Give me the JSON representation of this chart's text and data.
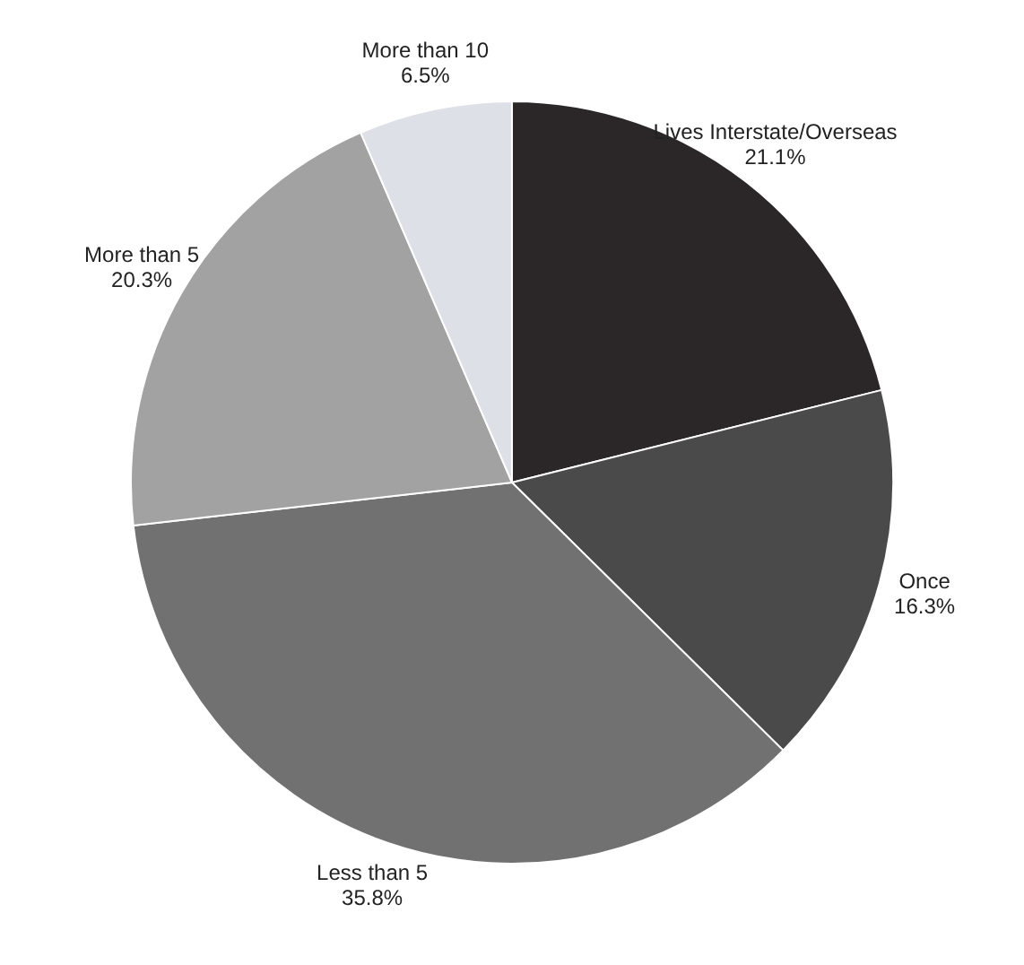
{
  "chart_data": {
    "type": "pie",
    "categories": [
      "Lives Interstate/Overseas",
      "Once",
      "Less than 5",
      "More than 5",
      "More than 10"
    ],
    "values": [
      21.1,
      16.3,
      35.8,
      20.3,
      6.5
    ],
    "value_labels": [
      "21.1%",
      "16.3%",
      "35.8%",
      "20.3%",
      "6.5%"
    ],
    "colors": [
      "#2b2729",
      "#4b4a4b",
      "#717171",
      "#a2a2a2",
      "#dde0e6"
    ],
    "legend": false
  }
}
